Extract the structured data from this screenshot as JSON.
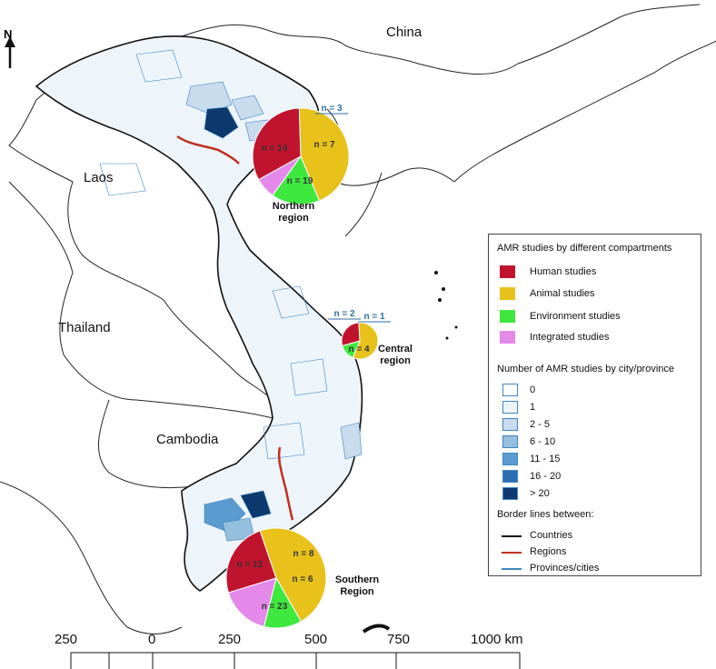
{
  "countries": {
    "china": "China",
    "laos": "Laos",
    "thailand": "Thailand",
    "cambodia": "Cambodia"
  },
  "north_arrow": "N",
  "regions": {
    "northern": {
      "name_line1": "Northern",
      "name_line2": "region",
      "slices": [
        {
          "label": "n = 14",
          "value": 14,
          "color": "#c0142e"
        },
        {
          "label": "n = 19",
          "value": 19,
          "color": "#e8c21a"
        },
        {
          "label": "n = 7",
          "value": 7,
          "color": "#3fe83f"
        },
        {
          "label": "n = 3",
          "value": 3,
          "color": "#e489ea"
        }
      ]
    },
    "central": {
      "name_line1": "Central",
      "name_line2": "region",
      "slices": [
        {
          "label": "n = 2",
          "value": 2,
          "color": "#c0142e"
        },
        {
          "label": "n = 4",
          "value": 4,
          "color": "#e8c21a"
        },
        {
          "label": "n = 1",
          "value": 1,
          "color": "#3fe83f"
        }
      ]
    },
    "southern": {
      "name_line1": "Southern",
      "name_line2": "Region",
      "slices": [
        {
          "label": "n = 12",
          "value": 12,
          "color": "#c0142e"
        },
        {
          "label": "n = 23",
          "value": 23,
          "color": "#e8c21a"
        },
        {
          "label": "n = 6",
          "value": 6,
          "color": "#3fe83f"
        },
        {
          "label": "n = 8",
          "value": 8,
          "color": "#e489ea"
        }
      ]
    }
  },
  "legend": {
    "compartments_title": "AMR studies by different compartments",
    "compartments": [
      {
        "label": "Human studies",
        "color": "#c0142e"
      },
      {
        "label": "Animal studies",
        "color": "#e8c21a"
      },
      {
        "label": "Environment studies",
        "color": "#3fe83f"
      },
      {
        "label": "Integrated studies",
        "color": "#e489ea"
      }
    ],
    "counts_title": "Number of AMR studies by city/province",
    "counts": [
      {
        "label": "0",
        "color": "#ffffff"
      },
      {
        "label": "1",
        "color": "#edf5fb"
      },
      {
        "label": "2 - 5",
        "color": "#c8dcee"
      },
      {
        "label": "6 - 10",
        "color": "#94bfdd"
      },
      {
        "label": "11 - 15",
        "color": "#5a9bd0"
      },
      {
        "label": "16 - 20",
        "color": "#2a6eb3"
      },
      {
        "label": "> 20",
        "color": "#0c3a6e"
      }
    ],
    "borders_title": "Border lines between:",
    "borders": [
      {
        "label": "Countries",
        "color": "#111111"
      },
      {
        "label": "Regions",
        "color": "#c0301e"
      },
      {
        "label": "Provinces/cities",
        "color": "#3f86c4"
      }
    ]
  },
  "scale_bar": {
    "labels": [
      "250",
      "0",
      "250",
      "500",
      "750",
      "1000 km"
    ]
  }
}
